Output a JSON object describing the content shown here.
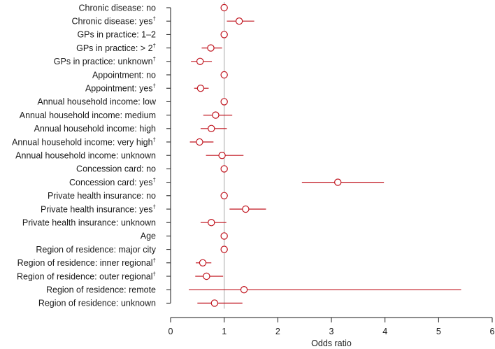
{
  "chart_data": {
    "type": "forest",
    "title": "",
    "xlabel": "Odds ratio",
    "ylabel": "",
    "xlim": [
      0,
      6
    ],
    "xticks": [
      0,
      1,
      2,
      3,
      4,
      5,
      6
    ],
    "xtick_labels": [
      "0",
      "1",
      "2",
      "3",
      "4",
      "5",
      "6"
    ],
    "reference_line": 1,
    "grid": false,
    "colors": {
      "marker": "#c0141e",
      "reference": "#b5b5b5",
      "axis": "#1a1a1a"
    },
    "rows": [
      {
        "label": "Chronic disease:  no",
        "dagger": "",
        "or": 1.0,
        "lo": 1.0,
        "hi": 1.0
      },
      {
        "label": "Chronic disease: yes",
        "dagger": "†",
        "or": 1.28,
        "lo": 1.05,
        "hi": 1.56
      },
      {
        "label": "GPs in practice: 1–2",
        "dagger": "",
        "or": 1.0,
        "lo": 1.0,
        "hi": 1.0
      },
      {
        "label": "GPs in practice: > 2",
        "dagger": "†",
        "or": 0.75,
        "lo": 0.58,
        "hi": 0.96
      },
      {
        "label": "GPs in practice: unknown",
        "dagger": "†",
        "or": 0.55,
        "lo": 0.38,
        "hi": 0.77
      },
      {
        "label": "Appointment: no",
        "dagger": "",
        "or": 1.0,
        "lo": 1.0,
        "hi": 1.0
      },
      {
        "label": "Appointment: yes",
        "dagger": "†",
        "or": 0.56,
        "lo": 0.44,
        "hi": 0.71
      },
      {
        "label": "Annual household income: low",
        "dagger": "",
        "or": 1.0,
        "lo": 1.0,
        "hi": 1.0
      },
      {
        "label": "Annual household income: medium",
        "dagger": "",
        "or": 0.84,
        "lo": 0.61,
        "hi": 1.15
      },
      {
        "label": "Annual household income: high",
        "dagger": "",
        "or": 0.76,
        "lo": 0.56,
        "hi": 1.05
      },
      {
        "label": "Annual household income: very high",
        "dagger": "†",
        "or": 0.54,
        "lo": 0.36,
        "hi": 0.8
      },
      {
        "label": "Annual household income: unknown",
        "dagger": "",
        "or": 0.96,
        "lo": 0.66,
        "hi": 1.36
      },
      {
        "label": "Concession card: no",
        "dagger": "",
        "or": 1.0,
        "lo": 1.0,
        "hi": 1.0
      },
      {
        "label": "Concession card: yes",
        "dagger": "†",
        "or": 3.12,
        "lo": 2.45,
        "hi": 3.98
      },
      {
        "label": "Private health insurance: no",
        "dagger": "",
        "or": 1.0,
        "lo": 1.0,
        "hi": 1.0
      },
      {
        "label": "Private health insurance: yes",
        "dagger": "†",
        "or": 1.4,
        "lo": 1.1,
        "hi": 1.78
      },
      {
        "label": "Private health insurance: unknown",
        "dagger": "",
        "or": 0.76,
        "lo": 0.56,
        "hi": 1.04
      },
      {
        "label": "Age",
        "dagger": "",
        "or": 1.0,
        "lo": 1.0,
        "hi": 1.0
      },
      {
        "label": "Region of residence: major city",
        "dagger": "",
        "or": 1.0,
        "lo": 1.0,
        "hi": 1.0
      },
      {
        "label": "Region of residence: inner regional",
        "dagger": "†",
        "or": 0.6,
        "lo": 0.47,
        "hi": 0.76
      },
      {
        "label": "Region of residence: outer regional",
        "dagger": "†",
        "or": 0.67,
        "lo": 0.46,
        "hi": 0.98
      },
      {
        "label": "Region of residence: remote",
        "dagger": "",
        "or": 1.37,
        "lo": 0.34,
        "hi": 5.42
      },
      {
        "label": "Region of residence: unknown",
        "dagger": "",
        "or": 0.82,
        "lo": 0.5,
        "hi": 1.34
      }
    ]
  }
}
